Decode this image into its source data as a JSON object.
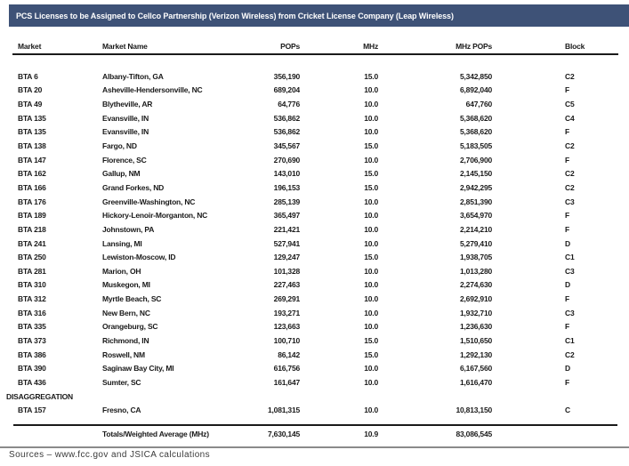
{
  "title": "PCS Licenses to be Assigned to Cellco Partnership (Verizon Wireless) from Cricket License Company (Leap Wireless)",
  "colors": {
    "title_bar_bg": "#3E5277",
    "title_text": "#FFFFFF",
    "rule_dark": "#1A1A1A",
    "rule_grey": "#8A8A8A"
  },
  "table": {
    "columns": {
      "market": "Market",
      "market_name": "Market Name",
      "pops": "POPs",
      "mhz": "MHz",
      "mhz_pops": "MHz POPs",
      "block": "Block"
    },
    "rows": [
      {
        "market": "BTA 6",
        "market_name": "Albany-Tifton, GA",
        "pops": "356,190",
        "mhz": "15.0",
        "mhz_pops": "5,342,850",
        "block": "C2"
      },
      {
        "market": "BTA 20",
        "market_name": "Asheville-Hendersonville, NC",
        "pops": "689,204",
        "mhz": "10.0",
        "mhz_pops": "6,892,040",
        "block": "F"
      },
      {
        "market": "BTA 49",
        "market_name": "Blytheville, AR",
        "pops": "64,776",
        "mhz": "10.0",
        "mhz_pops": "647,760",
        "block": "C5"
      },
      {
        "market": "BTA 135",
        "market_name": "Evansville, IN",
        "pops": "536,862",
        "mhz": "10.0",
        "mhz_pops": "5,368,620",
        "block": "C4"
      },
      {
        "market": "BTA 135",
        "market_name": "Evansville, IN",
        "pops": "536,862",
        "mhz": "10.0",
        "mhz_pops": "5,368,620",
        "block": "F"
      },
      {
        "market": "BTA 138",
        "market_name": "Fargo, ND",
        "pops": "345,567",
        "mhz": "15.0",
        "mhz_pops": "5,183,505",
        "block": "C2"
      },
      {
        "market": "BTA 147",
        "market_name": "Florence, SC",
        "pops": "270,690",
        "mhz": "10.0",
        "mhz_pops": "2,706,900",
        "block": "F"
      },
      {
        "market": "BTA 162",
        "market_name": "Gallup, NM",
        "pops": "143,010",
        "mhz": "15.0",
        "mhz_pops": "2,145,150",
        "block": "C2"
      },
      {
        "market": "BTA 166",
        "market_name": "Grand Forkes, ND",
        "pops": "196,153",
        "mhz": "15.0",
        "mhz_pops": "2,942,295",
        "block": "C2"
      },
      {
        "market": "BTA 176",
        "market_name": "Greenville-Washington, NC",
        "pops": "285,139",
        "mhz": "10.0",
        "mhz_pops": "2,851,390",
        "block": "C3"
      },
      {
        "market": "BTA 189",
        "market_name": "Hickory-Lenoir-Morganton, NC",
        "pops": "365,497",
        "mhz": "10.0",
        "mhz_pops": "3,654,970",
        "block": "F"
      },
      {
        "market": "BTA 218",
        "market_name": "Johnstown, PA",
        "pops": "221,421",
        "mhz": "10.0",
        "mhz_pops": "2,214,210",
        "block": "F"
      },
      {
        "market": "BTA 241",
        "market_name": "Lansing, MI",
        "pops": "527,941",
        "mhz": "10.0",
        "mhz_pops": "5,279,410",
        "block": "D"
      },
      {
        "market": "BTA 250",
        "market_name": "Lewiston-Moscow, ID",
        "pops": "129,247",
        "mhz": "15.0",
        "mhz_pops": "1,938,705",
        "block": "C1"
      },
      {
        "market": "BTA 281",
        "market_name": "Marion, OH",
        "pops": "101,328",
        "mhz": "10.0",
        "mhz_pops": "1,013,280",
        "block": "C3"
      },
      {
        "market": "BTA 310",
        "market_name": "Muskegon, MI",
        "pops": "227,463",
        "mhz": "10.0",
        "mhz_pops": "2,274,630",
        "block": "D"
      },
      {
        "market": "BTA 312",
        "market_name": "Myrtle Beach, SC",
        "pops": "269,291",
        "mhz": "10.0",
        "mhz_pops": "2,692,910",
        "block": "F"
      },
      {
        "market": "BTA 316",
        "market_name": "New Bern, NC",
        "pops": "193,271",
        "mhz": "10.0",
        "mhz_pops": "1,932,710",
        "block": "C3"
      },
      {
        "market": "BTA 335",
        "market_name": "Orangeburg, SC",
        "pops": "123,663",
        "mhz": "10.0",
        "mhz_pops": "1,236,630",
        "block": "F"
      },
      {
        "market": "BTA 373",
        "market_name": "Richmond, IN",
        "pops": "100,710",
        "mhz": "15.0",
        "mhz_pops": "1,510,650",
        "block": "C1"
      },
      {
        "market": "BTA 386",
        "market_name": "Roswell, NM",
        "pops": "86,142",
        "mhz": "15.0",
        "mhz_pops": "1,292,130",
        "block": "C2"
      },
      {
        "market": "BTA 390",
        "market_name": "Saginaw Bay City, MI",
        "pops": "616,756",
        "mhz": "10.0",
        "mhz_pops": "6,167,560",
        "block": "D"
      },
      {
        "market": "BTA 436",
        "market_name": "Sumter, SC",
        "pops": "161,647",
        "mhz": "10.0",
        "mhz_pops": "1,616,470",
        "block": "F"
      },
      {
        "section_label": "DISAGGREGATION"
      },
      {
        "market": "BTA 157",
        "market_name": "Fresno, CA",
        "pops": "1,081,315",
        "mhz": "10.0",
        "mhz_pops": "10,813,150",
        "block": "C"
      }
    ],
    "totals": {
      "label": "Totals/Weighted Average (MHz)",
      "pops": "7,630,145",
      "mhz": "10.9",
      "mhz_pops": "83,086,545",
      "block": ""
    }
  },
  "footer": {
    "source_note": "Sources – www.fcc.gov and JSICA calculations"
  }
}
